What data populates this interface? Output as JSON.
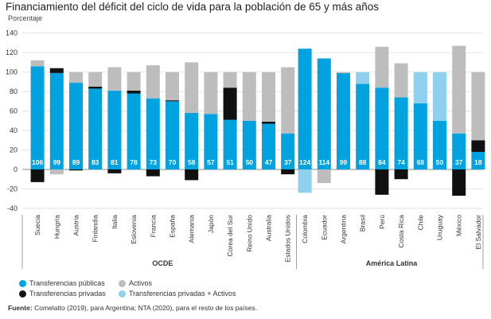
{
  "title": "Financiamiento del déficit del ciclo de vida para la población de 65 y más años",
  "unit_label": "Porcentaje",
  "source_label": "Fuente:",
  "source_text": "Comelatto (2019), para Argentina; NTA (2020), para el resto de los países.",
  "colors": {
    "publicas": "#00a3e0",
    "privadas": "#111111",
    "activos": "#bdbdbd",
    "privadas_activos": "#8fd0ee",
    "grid": "#dddddd",
    "axis": "#888888"
  },
  "legend": [
    {
      "key": "publicas",
      "label": "Transferencias públicas"
    },
    {
      "key": "activos",
      "label": "Activos"
    },
    {
      "key": "privadas",
      "label": "Transferencias privadas"
    },
    {
      "key": "privadas_activos",
      "label": "Transferencias privadas + Activos"
    }
  ],
  "chart_data": {
    "type": "bar",
    "stacked": true,
    "ylabel": "Porcentaje",
    "ylim": [
      -40,
      140
    ],
    "yticks": [
      -40,
      -20,
      0,
      20,
      40,
      60,
      80,
      100,
      120,
      140
    ],
    "grid": true,
    "legend_position": "bottom-left",
    "groups": [
      {
        "name": "OCDE",
        "categories": [
          "Suecia",
          "Hungría",
          "Austria",
          "Finlandia",
          "Italia",
          "Eslovenia",
          "Francia",
          "España",
          "Alemania",
          "Japón",
          "Corea del Sur",
          "Reino Unido",
          "Australia",
          "Estados Unidos"
        ]
      },
      {
        "name": "América Latina",
        "categories": [
          "Colombia",
          "Ecuador",
          "Argentina",
          "Brasil",
          "Perú",
          "Costa Rica",
          "Chile",
          "Uruguay",
          "México",
          "El Salvador"
        ]
      }
    ],
    "categories": [
      "Suecia",
      "Hungría",
      "Austria",
      "Finlandia",
      "Italia",
      "Eslovenia",
      "Francia",
      "España",
      "Alemania",
      "Japón",
      "Corea del Sur",
      "Reino Unido",
      "Australia",
      "Estados Unidos",
      "Colombia",
      "Ecuador",
      "Argentina",
      "Brasil",
      "Perú",
      "Costa Rica",
      "Chile",
      "Uruguay",
      "México",
      "El Salvador"
    ],
    "public_labels": [
      "106",
      "99",
      "89",
      "83",
      "81",
      "78",
      "73",
      "70",
      "58",
      "57",
      "51",
      "50",
      "47",
      "37",
      "124",
      "114",
      "99",
      "88",
      "84",
      "74",
      "68",
      "50",
      "37",
      "18"
    ],
    "series": [
      {
        "name": "Transferencias públicas",
        "key": "publicas",
        "values": [
          106,
          99,
          89,
          83,
          81,
          78,
          73,
          70,
          58,
          57,
          51,
          50,
          47,
          37,
          124,
          114,
          99,
          88,
          84,
          74,
          68,
          50,
          37,
          18
        ]
      },
      {
        "name": "Transferencias privadas",
        "key": "privadas",
        "values": [
          -13,
          5,
          -1,
          2,
          -4,
          3,
          -7,
          1,
          -11,
          0,
          33,
          0,
          2,
          -5,
          0,
          0,
          0,
          0,
          -26,
          -10,
          0,
          0,
          -27,
          12
        ]
      },
      {
        "name": "Activos",
        "key": "activos",
        "values": [
          6,
          -5,
          11,
          15,
          24,
          19,
          34,
          29,
          52,
          43,
          16,
          50,
          51,
          68,
          0,
          -14,
          1,
          0,
          42,
          35,
          0,
          0,
          90,
          70
        ]
      },
      {
        "name": "Transferencias privadas + Activos",
        "key": "privadas_activos",
        "values": [
          0,
          0,
          0,
          0,
          0,
          0,
          0,
          0,
          0,
          0,
          0,
          0,
          0,
          0,
          -24,
          0,
          0,
          12,
          0,
          0,
          32,
          50,
          0,
          0
        ]
      }
    ]
  }
}
